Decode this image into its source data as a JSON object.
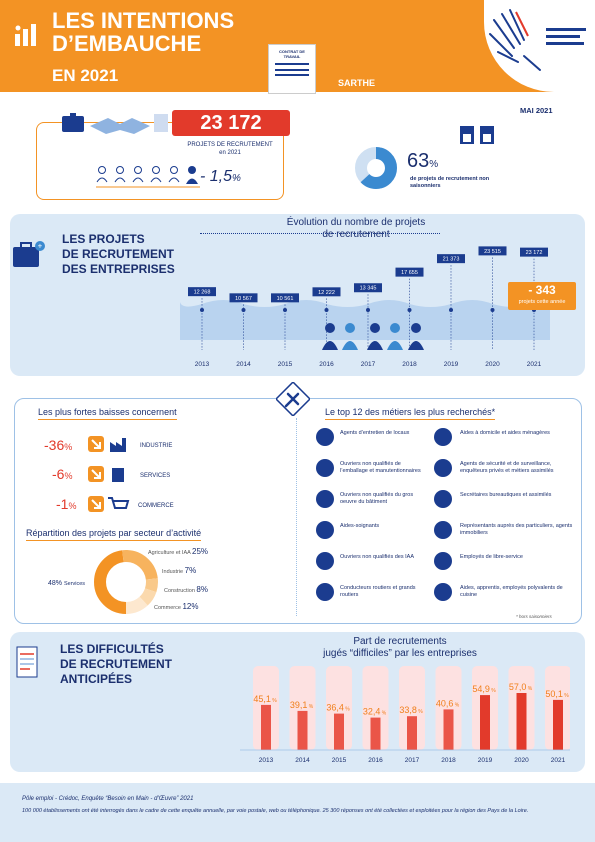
{
  "header": {
    "title_line1": "LES INTENTIONS",
    "title_line2": "D’EMBAUCHE",
    "title_year": "EN 2021",
    "contract_label": "CONTRAT DE TRAVAIL",
    "region": "SARTHE",
    "date": "MAI 2021",
    "accent": "#f39324"
  },
  "summary": {
    "projects_value": "23 172",
    "projects_label": "PROJETS DE RECRUTEMENT",
    "projects_sub": "en 2021",
    "change_sign": "- ",
    "change_value": "1,5",
    "change_unit": "%",
    "non_seasonal_value": "63",
    "non_seasonal_unit": "%",
    "non_seasonal_label": "de projets de recrutement non saisonniers",
    "non_seasonal_fraction": 0.63
  },
  "projects_section": {
    "title_lines": [
      "LES PROJETS",
      "DE RECRUTEMENT",
      "DES ENTREPRISES"
    ],
    "chart_title_lines": [
      "Évolution du nombre de projets",
      "de recrutement"
    ],
    "delta_value": "- 343",
    "delta_label": "projets cette année"
  },
  "chart_data": [
    {
      "type": "line",
      "title": "Évolution du nombre de projets de recrutement",
      "x": [
        "2013",
        "2014",
        "2015",
        "2016",
        "2017",
        "2018",
        "2019",
        "2020",
        "2021"
      ],
      "values": [
        12268,
        10567,
        10561,
        12222,
        13345,
        17655,
        21373,
        23515,
        23172
      ],
      "labels": [
        "12 268",
        "10 567",
        "10 561",
        "12 222",
        "13 345",
        "17 655",
        "21 373",
        "23 515",
        "23 172"
      ],
      "ylim": [
        0,
        25000
      ]
    },
    {
      "type": "bar",
      "title": "Part de recrutements jugés “difficiles” par les entreprises",
      "categories": [
        "2013",
        "2014",
        "2015",
        "2016",
        "2017",
        "2018",
        "2019",
        "2020",
        "2021"
      ],
      "values": [
        45.1,
        39.1,
        36.4,
        32.4,
        33.8,
        40.6,
        54.9,
        57.0,
        50.1
      ],
      "labels": [
        "45,1",
        "39,1",
        "36,4",
        "32,4",
        "33,8",
        "40,6",
        "54,9",
        "57,0",
        "50,1"
      ],
      "unit": "%",
      "ylim": [
        0,
        100
      ]
    }
  ],
  "declines": {
    "title": "Les plus fortes baisses concernent",
    "items": [
      {
        "value": "-36",
        "unit": "%",
        "label": "INDUSTRIE"
      },
      {
        "value": "-6",
        "unit": "%",
        "label": "SERVICES"
      },
      {
        "value": "-1",
        "unit": "%",
        "label": "COMMERCE"
      }
    ]
  },
  "sectors": {
    "title": "Répartition des projets par secteur d’activité",
    "items": [
      {
        "label": "Services",
        "value": "48%",
        "fraction": 0.48,
        "color": "#f39324"
      },
      {
        "label": "Agriculture et IAA",
        "value": "25%",
        "fraction": 0.25,
        "color": "#f7b35e"
      },
      {
        "label": "Industrie",
        "value": "7%",
        "fraction": 0.07,
        "color": "#f9c98a"
      },
      {
        "label": "Construction",
        "value": "8%",
        "fraction": 0.08,
        "color": "#fbd9ad"
      },
      {
        "label": "Commerce",
        "value": "12%",
        "fraction": 0.12,
        "color": "#fde8cf"
      }
    ]
  },
  "top_jobs": {
    "title": "Le top 12 des métiers les plus recherchés*",
    "left": [
      "Agents d’entretien de locaux",
      "Ouvriers non qualifiés de l’emballage et manutentionnaires",
      "Ouvriers non qualifiés du gros oeuvre du bâtiment",
      "Aides-soignants",
      "Ouvriers non qualifiés des IAA",
      "Conducteurs routiers et grands routiers"
    ],
    "right": [
      "Aides à domicile et aides ménagères",
      "Agents de sécurité et de surveillance, enquêteurs privés et métiers assimilés",
      "Secrétaires bureautiques et assimilés",
      "Représentants auprès des particuliers, agents immobiliers",
      "Employés de libre-service",
      "Aides, apprentis, employés polyvalents de cuisine"
    ],
    "footnote": "* hors saisonniers"
  },
  "difficulties": {
    "title_lines": [
      "LES DIFFICULTÉS",
      "DE RECRUTEMENT",
      "ANTICIPÉES"
    ],
    "chart_title_lines": [
      "Part de recrutements",
      "jugés “difficiles” par les entreprises"
    ]
  },
  "footer": {
    "source": "Pôle emploi - Crédoc, Enquête “Besoin en Main - d’Œuvre” 2021",
    "note": "100 000 établissements ont été interrogés dans le cadre de cette enquête annuelle, par voie postale, web ou téléphonique. 25 300 réponses ont été collectées et exploitées pour la région des Pays de la Loire."
  }
}
